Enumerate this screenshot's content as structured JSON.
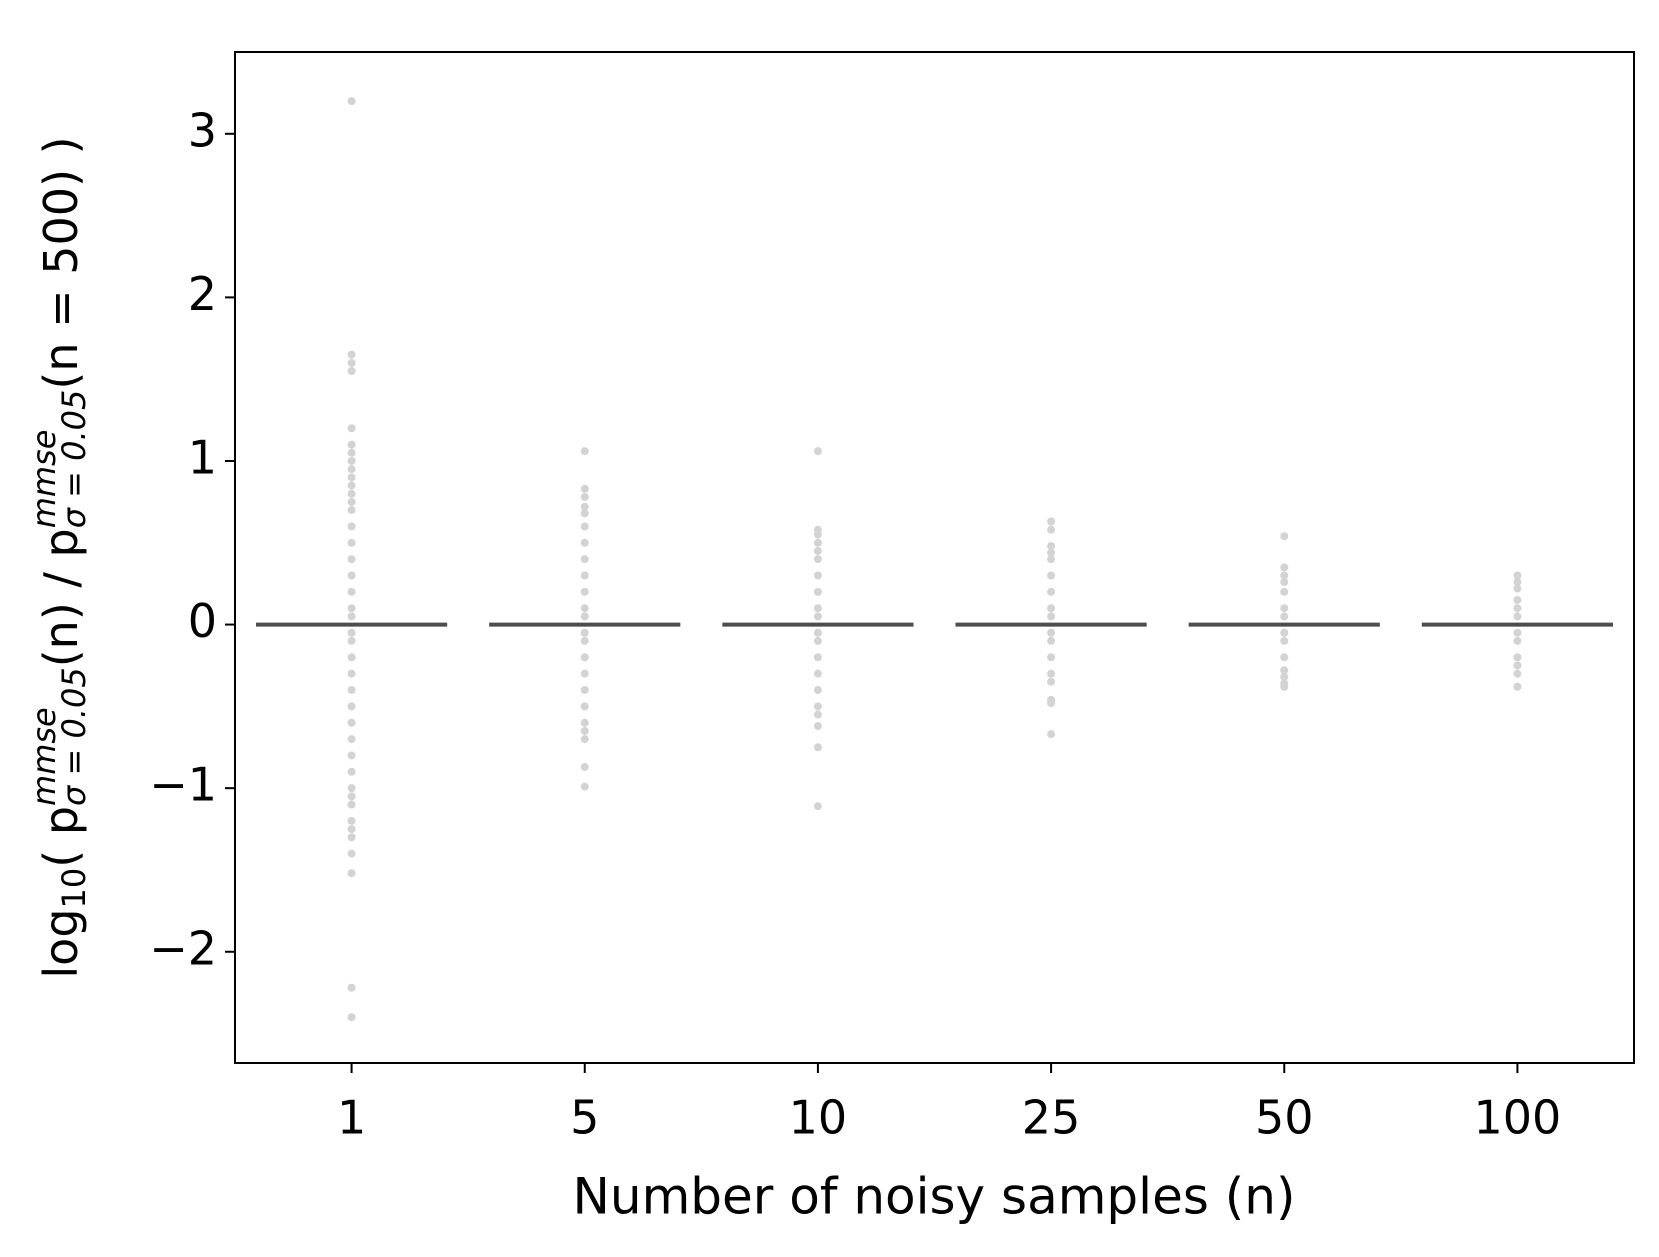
{
  "chart_data": {
    "type": "strip",
    "xlabel": "Number of noisy samples (n)",
    "ylabel": [
      {
        "text": "log",
        "pos": "base"
      },
      {
        "text": "10",
        "pos": "sub"
      },
      {
        "text": "( p",
        "pos": "base"
      },
      {
        "text": "mmse",
        "pos": "sup"
      },
      {
        "text": "σ = 0.05",
        "pos": "stack"
      },
      {
        "text": "(n) / p",
        "pos": "base"
      },
      {
        "text": "mmse",
        "pos": "sup"
      },
      {
        "text": "σ = 0.05",
        "pos": "stack"
      },
      {
        "text": "(n = 500) )",
        "pos": "base"
      }
    ],
    "categories": [
      "1",
      "5",
      "10",
      "25",
      "50",
      "100"
    ],
    "points": [
      [
        3.2,
        1.65,
        1.6,
        1.55,
        1.2,
        1.1,
        1.05,
        1.0,
        0.95,
        0.9,
        0.85,
        0.8,
        0.75,
        0.7,
        0.6,
        0.5,
        0.4,
        0.3,
        0.2,
        0.1,
        0.05,
        -0.05,
        -0.1,
        -0.2,
        -0.3,
        -0.4,
        -0.5,
        -0.6,
        -0.7,
        -0.8,
        -0.9,
        -1.0,
        -1.05,
        -1.1,
        -1.2,
        -1.25,
        -1.3,
        -1.4,
        -1.52,
        -2.22,
        -2.4
      ],
      [
        1.06,
        0.83,
        0.78,
        0.72,
        0.68,
        0.6,
        0.5,
        0.4,
        0.3,
        0.2,
        0.1,
        0.05,
        -0.05,
        -0.1,
        -0.2,
        -0.3,
        -0.4,
        -0.5,
        -0.6,
        -0.65,
        -0.7,
        -0.87,
        -0.99
      ],
      [
        1.06,
        0.58,
        0.55,
        0.5,
        0.45,
        0.4,
        0.3,
        0.2,
        0.1,
        0.05,
        -0.05,
        -0.1,
        -0.2,
        -0.3,
        -0.4,
        -0.5,
        -0.55,
        -0.62,
        -0.75,
        -1.11
      ],
      [
        0.63,
        0.58,
        0.48,
        0.44,
        0.4,
        0.3,
        0.2,
        0.1,
        0.05,
        -0.05,
        -0.1,
        -0.2,
        -0.3,
        -0.35,
        -0.46,
        -0.48,
        -0.67
      ],
      [
        0.54,
        0.35,
        0.3,
        0.26,
        0.2,
        0.1,
        0.05,
        -0.05,
        -0.1,
        -0.2,
        -0.28,
        -0.32,
        -0.36,
        -0.38
      ],
      [
        0.3,
        0.26,
        0.22,
        0.15,
        0.1,
        0.05,
        -0.05,
        -0.1,
        -0.2,
        -0.25,
        -0.3,
        -0.38
      ]
    ],
    "medians": [
      0,
      0,
      0,
      0,
      0,
      0
    ],
    "point_color": "#d3d3d3",
    "median_color": "#4d4d4d",
    "ylim": [
      -2.68,
      3.5
    ],
    "yticks": [
      {
        "value": -2,
        "label": "−2"
      },
      {
        "value": -1,
        "label": "−1"
      },
      0,
      1,
      2,
      3
    ]
  }
}
